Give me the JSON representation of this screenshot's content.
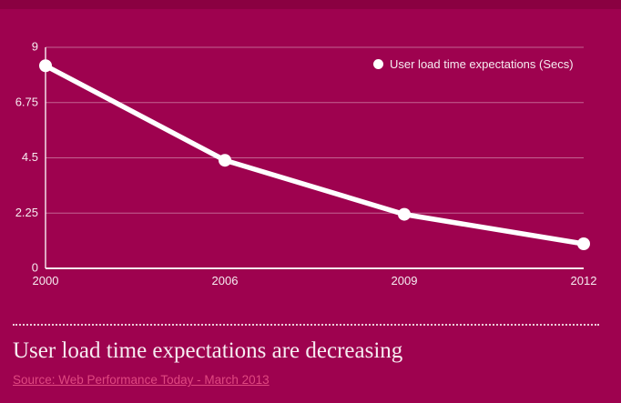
{
  "colors": {
    "background": "#9E024F",
    "top_band": "#8A0141",
    "line": "#FFFFFF",
    "grid": "rgba(255,255,255,0.38)",
    "text": "#F6ECF1",
    "link": "#DF4880"
  },
  "chart_data": {
    "type": "line",
    "categories": [
      "2000",
      "2006",
      "2009",
      "2012"
    ],
    "series": [
      {
        "name": "User load time expectations (Secs)",
        "values": [
          8.25,
          4.4,
          2.2,
          1
        ]
      }
    ],
    "title": "",
    "xlabel": "",
    "ylabel": "",
    "ylim": [
      0,
      9
    ],
    "yticks": [
      0,
      2.25,
      4.5,
      6.75,
      9
    ],
    "ytick_labels": [
      "0",
      "2.25",
      "4.5",
      "6.75",
      "9"
    ],
    "grid": true,
    "legend_position": "top-right",
    "marker": "circle"
  },
  "footer": {
    "title": "User load time expectations are decreasing",
    "source_label": "Source: Web Performance Today - March 2013"
  }
}
